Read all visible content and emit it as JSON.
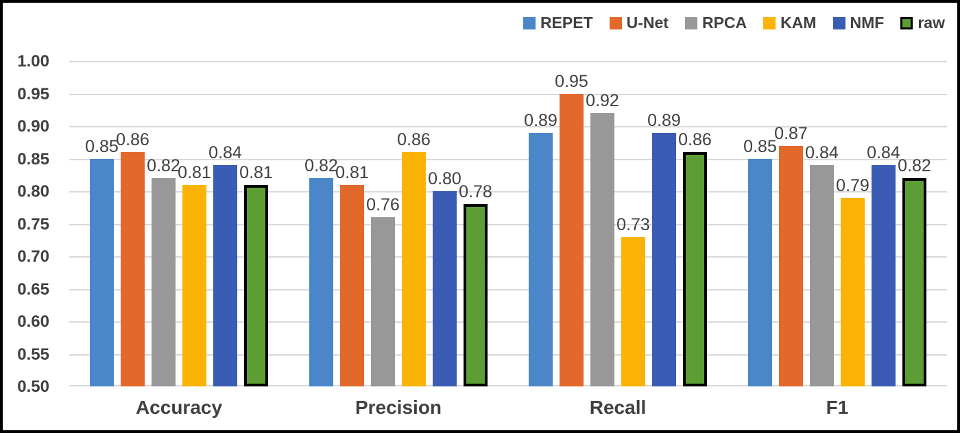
{
  "chart_data": {
    "type": "bar",
    "title": "",
    "xlabel": "",
    "ylabel": "",
    "categories": [
      "Accuracy",
      "Precision",
      "Recall",
      "F1"
    ],
    "series": [
      {
        "name": "REPET",
        "color": "#4a86c8",
        "outlined": false,
        "values": [
          0.85,
          0.82,
          0.89,
          0.85
        ]
      },
      {
        "name": "U-Net",
        "color": "#e2692b",
        "outlined": false,
        "values": [
          0.86,
          0.81,
          0.95,
          0.87
        ]
      },
      {
        "name": "RPCA",
        "color": "#989898",
        "outlined": false,
        "values": [
          0.82,
          0.76,
          0.92,
          0.84
        ]
      },
      {
        "name": "KAM",
        "color": "#fbb306",
        "outlined": false,
        "values": [
          0.81,
          0.86,
          0.73,
          0.79
        ]
      },
      {
        "name": "NMF",
        "color": "#3a5cb5",
        "outlined": false,
        "values": [
          0.84,
          0.8,
          0.89,
          0.84
        ]
      },
      {
        "name": "raw",
        "color": "#5c9e33",
        "outlined": true,
        "values": [
          0.81,
          0.78,
          0.86,
          0.82
        ]
      }
    ],
    "ylim": [
      0.5,
      1.0
    ],
    "ytick_labels": [
      "1.00",
      "0.95",
      "0.90",
      "0.85",
      "0.80",
      "0.75",
      "0.70",
      "0.65",
      "0.60",
      "0.55",
      "0.50"
    ],
    "grid": true,
    "legend_position": "top-right",
    "value_label_decimals": 2,
    "colors": {
      "text": "#404040",
      "gridline": "#d9d9d9",
      "outline": "#000000",
      "background": "#ffffff"
    }
  }
}
